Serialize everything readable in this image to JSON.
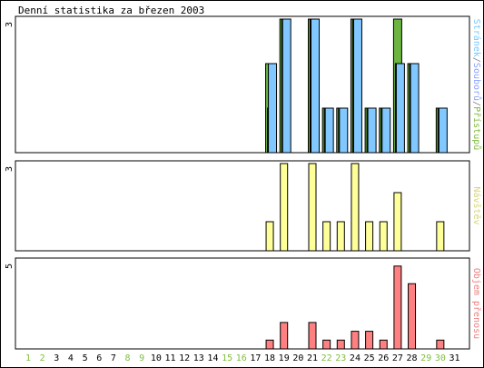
{
  "chart_data": [
    {
      "type": "bar",
      "title": "Denní statistika za březen 2003",
      "ylabel_parts": [
        {
          "text": "Stránek",
          "color": "#77c8ff"
        },
        {
          "text": "/",
          "color": "#808080"
        },
        {
          "text": "Souborů",
          "color": "#8ba4ff"
        },
        {
          "text": "/",
          "color": "#808080"
        },
        {
          "text": "Přístupů",
          "color": "#80bb3c"
        }
      ],
      "ymax_label": "3",
      "ylim": [
        0,
        3
      ],
      "categories": [
        "1",
        "2",
        "3",
        "4",
        "5",
        "6",
        "7",
        "8",
        "9",
        "10",
        "11",
        "12",
        "13",
        "14",
        "15",
        "16",
        "17",
        "18",
        "19",
        "20",
        "21",
        "22",
        "23",
        "24",
        "25",
        "26",
        "27",
        "28",
        "29",
        "30",
        "31"
      ],
      "weekend_days": [
        "1",
        "2",
        "8",
        "9",
        "15",
        "16",
        "22",
        "23",
        "29",
        "30"
      ],
      "series": [
        {
          "name": "Přístupů",
          "color": "#6bb540",
          "values": [
            0,
            0,
            0,
            0,
            0,
            0,
            0,
            0,
            0,
            0,
            0,
            0,
            0,
            0,
            0,
            0,
            0,
            2,
            3,
            0,
            3,
            1,
            1,
            3,
            1,
            1,
            3,
            2,
            0,
            1,
            0
          ]
        },
        {
          "name": "Souborů",
          "color": "#2d7a2d",
          "values": [
            0,
            0,
            0,
            0,
            0,
            0,
            0,
            0,
            0,
            0,
            0,
            0,
            0,
            0,
            0,
            0,
            0,
            1,
            3,
            0,
            3,
            1,
            1,
            3,
            1,
            1,
            2,
            2,
            0,
            1,
            0
          ]
        },
        {
          "name": "Stránek",
          "color": "#80c8ff",
          "values": [
            0,
            0,
            0,
            0,
            0,
            0,
            0,
            0,
            0,
            0,
            0,
            0,
            0,
            0,
            0,
            0,
            0,
            2,
            3,
            0,
            3,
            1,
            1,
            3,
            1,
            1,
            2,
            2,
            0,
            1,
            0
          ]
        }
      ]
    },
    {
      "type": "bar",
      "ylabel": "Návštěv",
      "ylabel_color": "#d6d67a",
      "ymax_label": "3",
      "ylim": [
        0,
        3
      ],
      "series": [
        {
          "name": "Návštěv",
          "color": "#ffff99",
          "values": [
            0,
            0,
            0,
            0,
            0,
            0,
            0,
            0,
            0,
            0,
            0,
            0,
            0,
            0,
            0,
            0,
            0,
            1,
            3,
            0,
            3,
            1,
            1,
            3,
            1,
            1,
            2,
            0,
            0,
            1,
            0
          ]
        }
      ]
    },
    {
      "type": "bar",
      "ylabel": "Objem přenosu",
      "ylabel_color": "#ee8080",
      "ymax_label": "5",
      "ylim": [
        0,
        5
      ],
      "series": [
        {
          "name": "Objem přenosu",
          "color": "#ff8080",
          "values": [
            0,
            0,
            0,
            0,
            0,
            0,
            0,
            0,
            0,
            0,
            0,
            0,
            0,
            0,
            0,
            0,
            0,
            0.5,
            1.5,
            0,
            1.5,
            0.5,
            0.5,
            1,
            1,
            0.5,
            4.7,
            3.7,
            0,
            0.5,
            0
          ]
        }
      ]
    }
  ]
}
